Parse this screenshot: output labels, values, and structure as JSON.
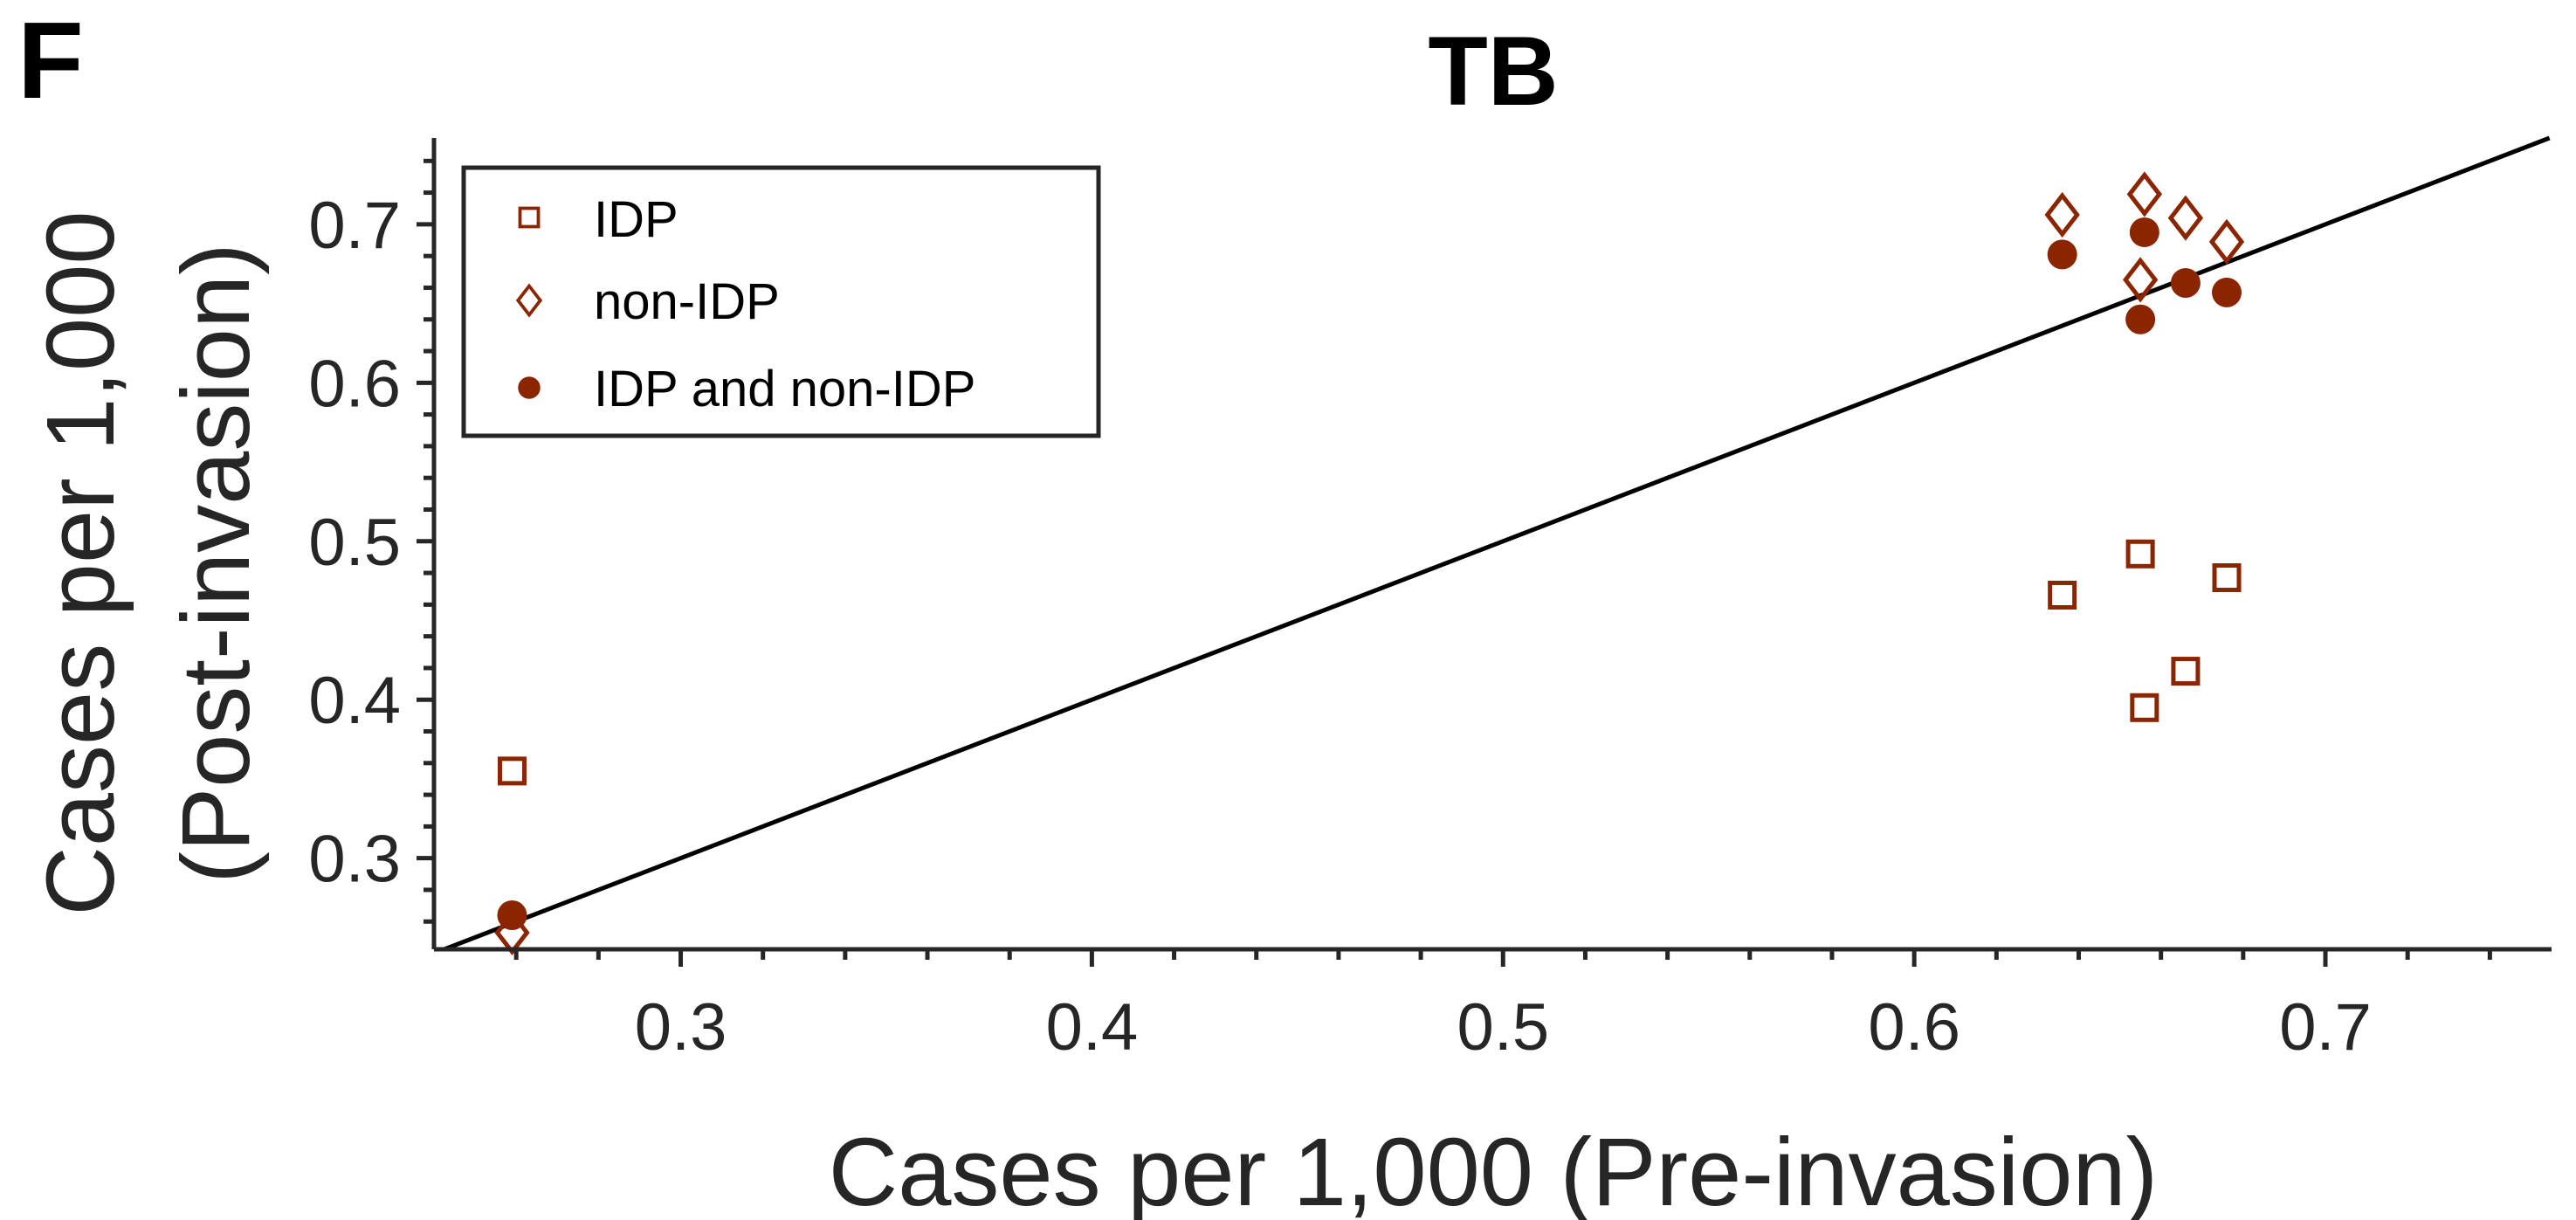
{
  "panel_letter": "F",
  "colors": {
    "marker": "#8B2500",
    "line": "#000000",
    "axis": "#262626"
  },
  "chart_data": {
    "type": "scatter",
    "title": "TB",
    "xlabel": "Cases per 1,000 (Pre-invasion)",
    "ylabel_line1": "Cases per 1,000",
    "ylabel_line2": "(Post-invasion)",
    "xlim": [
      0.24,
      0.755
    ],
    "ylim": [
      0.2425,
      0.7545
    ],
    "xticks": [
      0.3,
      0.4,
      0.5,
      0.6,
      0.7
    ],
    "xtick_labels": [
      "0.3",
      "0.4",
      "0.5",
      "0.6",
      "0.7"
    ],
    "yticks": [
      0.3,
      0.4,
      0.5,
      0.6,
      0.7
    ],
    "ytick_labels": [
      "0.3",
      "0.4",
      "0.5",
      "0.6",
      "0.7"
    ],
    "reference_line": "y = x",
    "grid": false,
    "legend_position": "top-left",
    "series": [
      {
        "name": "IDP",
        "marker": "square-open",
        "points": [
          [
            0.259,
            0.355
          ],
          [
            0.636,
            0.466
          ],
          [
            0.655,
            0.492
          ],
          [
            0.656,
            0.395
          ],
          [
            0.666,
            0.418
          ],
          [
            0.676,
            0.477
          ]
        ]
      },
      {
        "name": "non-IDP",
        "marker": "diamond-open",
        "points": [
          [
            0.259,
            0.253
          ],
          [
            0.636,
            0.706
          ],
          [
            0.655,
            0.665
          ],
          [
            0.656,
            0.719
          ],
          [
            0.666,
            0.704
          ],
          [
            0.676,
            0.689
          ]
        ]
      },
      {
        "name": "IDP and non-IDP",
        "marker": "circle-filled",
        "points": [
          [
            0.259,
            0.264
          ],
          [
            0.636,
            0.681
          ],
          [
            0.655,
            0.64
          ],
          [
            0.656,
            0.695
          ],
          [
            0.666,
            0.663
          ],
          [
            0.676,
            0.657
          ]
        ]
      }
    ]
  }
}
